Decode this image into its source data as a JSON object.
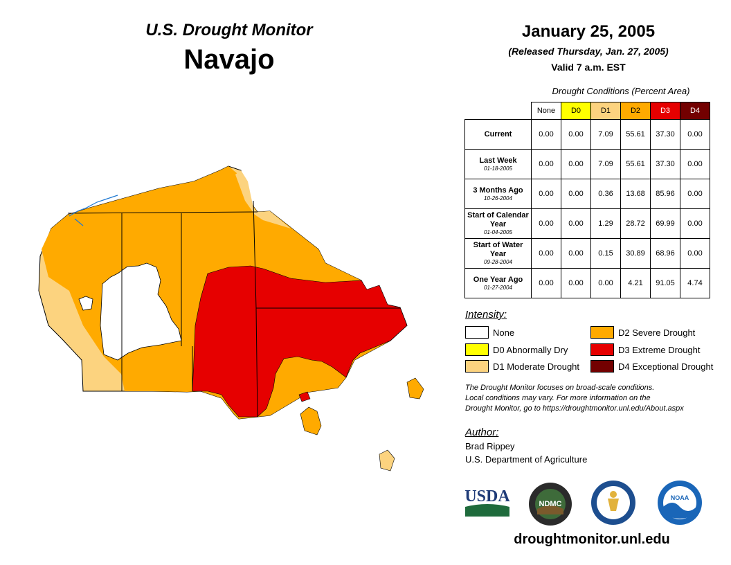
{
  "header": {
    "title": "U.S. Drought Monitor",
    "region": "Navajo",
    "date": "January 25, 2005",
    "released": "(Released Thursday, Jan. 27, 2005)",
    "valid": "Valid 7 a.m. EST"
  },
  "table": {
    "caption": "Drought Conditions (Percent Area)",
    "columns": [
      "None",
      "D0",
      "D1",
      "D2",
      "D3",
      "D4"
    ],
    "column_colors": [
      "#ffffff",
      "#ffff00",
      "#fcd37f",
      "#ffaa00",
      "#e60000",
      "#730000"
    ],
    "rows": [
      {
        "label": "Current",
        "date": "",
        "values": [
          "0.00",
          "0.00",
          "7.09",
          "55.61",
          "37.30",
          "0.00"
        ]
      },
      {
        "label": "Last Week",
        "date": "01-18-2005",
        "values": [
          "0.00",
          "0.00",
          "7.09",
          "55.61",
          "37.30",
          "0.00"
        ]
      },
      {
        "label": "3 Months Ago",
        "date": "10-26-2004",
        "values": [
          "0.00",
          "0.00",
          "0.36",
          "13.68",
          "85.96",
          "0.00"
        ]
      },
      {
        "label": "Start of Calendar Year",
        "date": "01-04-2005",
        "values": [
          "0.00",
          "0.00",
          "1.29",
          "28.72",
          "69.99",
          "0.00"
        ]
      },
      {
        "label": "Start of Water Year",
        "date": "09-28-2004",
        "values": [
          "0.00",
          "0.00",
          "0.15",
          "30.89",
          "68.96",
          "0.00"
        ]
      },
      {
        "label": "One Year Ago",
        "date": "01-27-2004",
        "values": [
          "0.00",
          "0.00",
          "0.00",
          "4.21",
          "91.05",
          "4.74"
        ]
      }
    ]
  },
  "legend": {
    "title": "Intensity:",
    "items": [
      {
        "label": "None",
        "color": "#ffffff"
      },
      {
        "label": "D0 Abnormally Dry",
        "color": "#ffff00"
      },
      {
        "label": "D1 Moderate Drought",
        "color": "#fcd37f"
      },
      {
        "label": "D2 Severe Drought",
        "color": "#ffaa00"
      },
      {
        "label": "D3 Extreme Drought",
        "color": "#e60000"
      },
      {
        "label": "D4 Exceptional Drought",
        "color": "#730000"
      }
    ]
  },
  "note": {
    "line1": "The Drought Monitor focuses on broad-scale conditions.",
    "line2": "Local conditions may vary. For more information on the",
    "line3": "Drought Monitor, go to https://droughtmonitor.unl.edu/About.aspx"
  },
  "author": {
    "title": "Author:",
    "name": "Brad Rippey",
    "org": "U.S. Department of Agriculture"
  },
  "logos": {
    "usda": "USDA",
    "ndmc": "NDMC",
    "noaa": "NOAA"
  },
  "footer_url": "droughtmonitor.unl.edu"
}
